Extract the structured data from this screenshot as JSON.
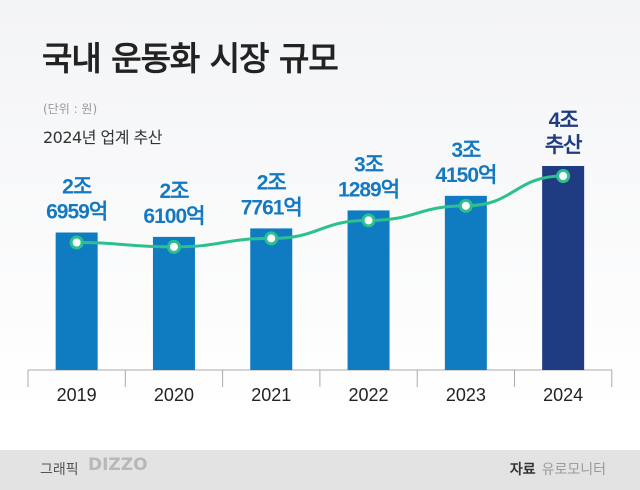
{
  "title": "국내 운동화 시장 규모",
  "unit": "(단위 : 원)",
  "note": "2024년 업계 추산",
  "chart_data": {
    "type": "bar",
    "categories": [
      "2019",
      "2020",
      "2021",
      "2022",
      "2023",
      "2024"
    ],
    "values": [
      26959,
      26100,
      27761,
      31289,
      34150,
      40000
    ],
    "value_unit": "억원",
    "ylim": [
      0,
      50000
    ],
    "overlay_line": true,
    "data_labels": [
      [
        "2조",
        "6959억"
      ],
      [
        "2조",
        "6100억"
      ],
      [
        "2조",
        "7761억"
      ],
      [
        "3조",
        "1289억"
      ],
      [
        "3조",
        "4150억"
      ],
      [
        "4조",
        "추산"
      ]
    ],
    "colors": {
      "bar": "#0f7cc2",
      "highlight_bar": "#1f3b82",
      "line": "#2cc08e",
      "label": "#1479c0",
      "highlight_label": "#1f3b82"
    },
    "grid": false
  },
  "footer": {
    "graphic_label": "그래픽",
    "graphic_logo": "DIZZO",
    "source_label": "자료",
    "source": "유로모니터"
  }
}
